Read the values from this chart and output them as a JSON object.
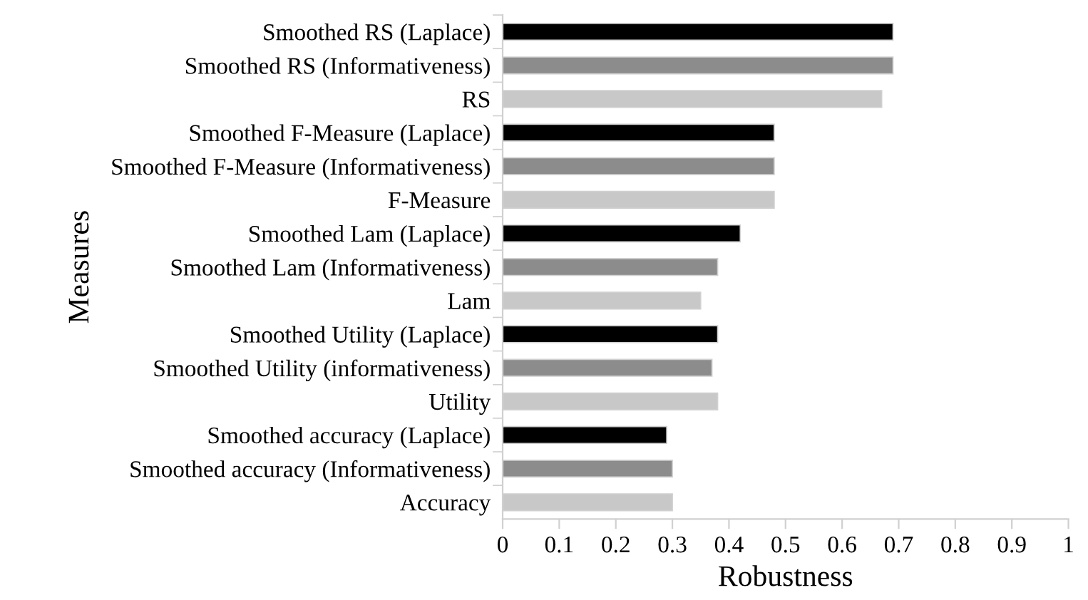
{
  "chart_data": {
    "type": "bar",
    "orientation": "horizontal",
    "xlabel": "Robustness",
    "ylabel": "Measures",
    "categories": [
      "Smoothed RS (Laplace)",
      "Smoothed RS (Informativeness)",
      "RS",
      "Smoothed F-Measure (Laplace)",
      "Smoothed F-Measure (Informativeness)",
      "F-Measure",
      "Smoothed Lam (Laplace)",
      "Smoothed Lam (Informativeness)",
      "Lam",
      "Smoothed Utility (Laplace)",
      "Smoothed Utility (informativeness)",
      "Utility",
      "Smoothed accuracy (Laplace)",
      "Smoothed accuracy (Informativeness)",
      "Accuracy"
    ],
    "values": [
      0.69,
      0.69,
      0.67,
      0.48,
      0.48,
      0.48,
      0.42,
      0.38,
      0.35,
      0.38,
      0.37,
      0.38,
      0.29,
      0.3,
      0.3
    ],
    "colors": [
      "#000000",
      "#8c8c8c",
      "#c8c8c8",
      "#000000",
      "#8c8c8c",
      "#c8c8c8",
      "#000000",
      "#8c8c8c",
      "#c8c8c8",
      "#000000",
      "#8c8c8c",
      "#c8c8c8",
      "#000000",
      "#8c8c8c",
      "#c8c8c8"
    ],
    "xlim": [
      0,
      1
    ],
    "xticks": [
      0,
      0.1,
      0.2,
      0.3,
      0.4,
      0.5,
      0.6,
      0.7,
      0.8,
      0.9,
      1
    ],
    "grid": false
  }
}
